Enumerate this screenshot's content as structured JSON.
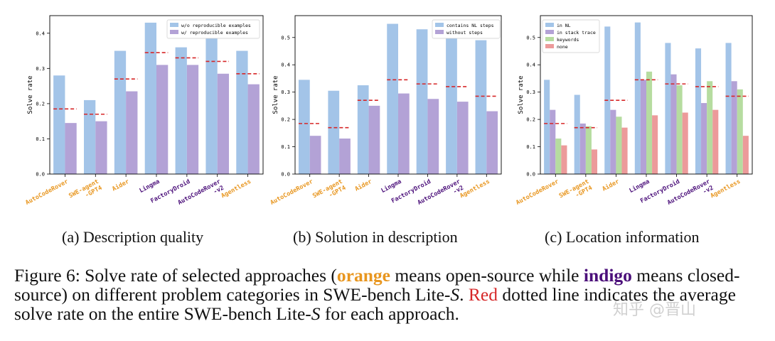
{
  "colors": {
    "nl_blue": "#a3c4e8",
    "indigo_light": "#b3a2d6",
    "green_light": "#b6dca0",
    "red_light": "#ec9a9a",
    "avg_line": "#d62728",
    "open_source": "#e8961f",
    "closed_source": "#4b0f7a"
  },
  "chart_data": [
    {
      "type": "bar",
      "ylabel": "Solve rate",
      "ylim": [
        0,
        0.45
      ],
      "yticks": [
        "0.0",
        "0.1",
        "0.2",
        "0.3",
        "0.4"
      ],
      "legend_position": "top-right",
      "categories": [
        "AutoCodeRover",
        "SWE-agent\n-GPT4",
        "Aider",
        "Lingma",
        "FactoryDroid",
        "AutoCodeRover\n-v2",
        "Agentless"
      ],
      "category_types": [
        "open",
        "open",
        "open",
        "closed",
        "closed",
        "closed",
        "open"
      ],
      "series": [
        {
          "name": "w/o reproducible examples",
          "color": "#a3c4e8",
          "values": [
            0.28,
            0.21,
            0.35,
            0.43,
            0.36,
            0.39,
            0.35
          ]
        },
        {
          "name": "w/ reproducible examples",
          "color": "#b3a2d6",
          "values": [
            0.145,
            0.15,
            0.235,
            0.31,
            0.31,
            0.285,
            0.255
          ]
        }
      ],
      "average": [
        0.185,
        0.17,
        0.27,
        0.345,
        0.33,
        0.32,
        0.285
      ]
    },
    {
      "type": "bar",
      "ylabel": "Solve rate",
      "ylim": [
        0,
        0.58
      ],
      "yticks": [
        "0.0",
        "0.1",
        "0.2",
        "0.3",
        "0.4",
        "0.5"
      ],
      "legend_position": "top-right",
      "categories": [
        "AutoCodeRover",
        "SWE-agent\n-GPT4",
        "Aider",
        "Lingma",
        "FactoryDroid",
        "AutoCodeRover\n-v2",
        "Agentless"
      ],
      "category_types": [
        "open",
        "open",
        "open",
        "closed",
        "closed",
        "closed",
        "open"
      ],
      "series": [
        {
          "name": "contains NL steps",
          "color": "#a3c4e8",
          "values": [
            0.345,
            0.305,
            0.325,
            0.55,
            0.53,
            0.52,
            0.49
          ]
        },
        {
          "name": "without steps",
          "color": "#b3a2d6",
          "values": [
            0.14,
            0.13,
            0.25,
            0.295,
            0.275,
            0.265,
            0.23
          ]
        }
      ],
      "average": [
        0.185,
        0.17,
        0.27,
        0.345,
        0.33,
        0.32,
        0.285
      ]
    },
    {
      "type": "bar",
      "ylabel": "Solve rate",
      "ylim": [
        0,
        0.58
      ],
      "yticks": [
        "0.0",
        "0.1",
        "0.2",
        "0.3",
        "0.4",
        "0.5"
      ],
      "legend_position": "top-left",
      "categories": [
        "AutoCodeRover",
        "SWE-agent\n-GPT4",
        "Aider",
        "Lingma",
        "FactoryDroid",
        "AutoCodeRover\n-v2",
        "Agentless"
      ],
      "category_types": [
        "open",
        "open",
        "open",
        "closed",
        "closed",
        "closed",
        "open"
      ],
      "series": [
        {
          "name": "in NL",
          "color": "#a3c4e8",
          "values": [
            0.345,
            0.29,
            0.54,
            0.555,
            0.48,
            0.46,
            0.48
          ]
        },
        {
          "name": "in stack trace",
          "color": "#b3a2d6",
          "values": [
            0.235,
            0.185,
            0.235,
            0.345,
            0.365,
            0.26,
            0.34
          ]
        },
        {
          "name": "keywords",
          "color": "#b6dca0",
          "values": [
            0.13,
            0.175,
            0.21,
            0.375,
            0.325,
            0.34,
            0.31
          ]
        },
        {
          "name": "none",
          "color": "#ec9a9a",
          "values": [
            0.105,
            0.09,
            0.17,
            0.215,
            0.225,
            0.235,
            0.14
          ]
        }
      ],
      "average": [
        0.185,
        0.17,
        0.27,
        0.345,
        0.33,
        0.32,
        0.285
      ]
    }
  ],
  "subcaptions": {
    "a": "(a) Description quality",
    "b": "(b) Solution in description",
    "c": "(c) Location information"
  },
  "caption": {
    "p1": "Figure 6: Solve rate of selected approaches (",
    "orange": "orange",
    "p2": " means open-source while ",
    "indigo": "indigo",
    "p3": " means closed-source) on different problem categories in SWE-bench Lite-",
    "s1": "S",
    "p4": ". ",
    "red": "Red",
    "p5": " dotted line indicates the average solve rate on the entire SWE-bench Lite-",
    "s2": "S",
    "p6": " for each approach."
  },
  "watermark": "知乎 @晋山"
}
